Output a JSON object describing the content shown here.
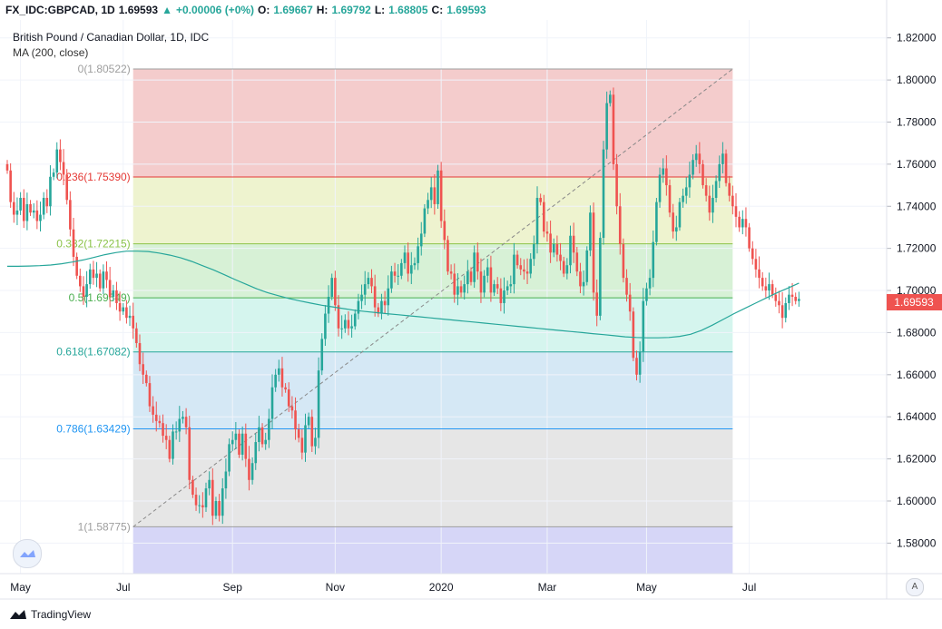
{
  "header": {
    "symbol": "FX_IDC:GBPCAD, 1D",
    "last": "1.69593",
    "change": "+0.00006 (+0%)",
    "o_label": "O:",
    "o": "1.69667",
    "h_label": "H:",
    "h": "1.69792",
    "l_label": "L:",
    "l": "1.68805",
    "c_label": "C:",
    "c": "1.69593"
  },
  "legend": {
    "title": "British Pound / Canadian Dollar, 1D, IDC",
    "study": "MA (200, close)"
  },
  "price_badge": "1.69593",
  "footer": {
    "brand": "TradingView"
  },
  "axis_button": "A",
  "colors": {
    "up": "#26a69a",
    "down": "#ef5350",
    "ma": "#26a69a",
    "badge": "#ef5350"
  },
  "chart_data": {
    "type": "candlestick",
    "ylim": [
      1.5655,
      1.8285
    ],
    "y_ticks": [
      "1.58000",
      "1.60000",
      "1.62000",
      "1.64000",
      "1.66000",
      "1.68000",
      "1.70000",
      "1.72000",
      "1.74000",
      "1.76000",
      "1.78000",
      "1.80000",
      "1.82000"
    ],
    "x_ticks": [
      {
        "label": "May",
        "idx": 4
      },
      {
        "label": "Jul",
        "idx": 35
      },
      {
        "label": "Sep",
        "idx": 68
      },
      {
        "label": "Nov",
        "idx": 99
      },
      {
        "label": "2020",
        "idx": 131
      },
      {
        "label": "Mar",
        "idx": 163
      },
      {
        "label": "May",
        "idx": 193
      },
      {
        "label": "Jul",
        "idx": 224
      }
    ],
    "fib": [
      {
        "label": "0(1.80522)",
        "value": 1.80522,
        "color": "#9e9e9e",
        "fill": "#f4cccc"
      },
      {
        "label": "0.236(1.75390)",
        "value": 1.7539,
        "color": "#e53935",
        "fill": "#eef3cf"
      },
      {
        "label": "0.382(1.72215)",
        "value": 1.72215,
        "color": "#8bc34a",
        "fill": "#d7f1d6"
      },
      {
        "label": "0.5(1.69649)",
        "value": 1.69649,
        "color": "#4caf50",
        "fill": "#d5f5ee"
      },
      {
        "label": "0.618(1.67082)",
        "value": 1.67082,
        "color": "#26a69a",
        "fill": "#d5e8f5"
      },
      {
        "label": "0.786(1.63429)",
        "value": 1.63429,
        "color": "#2196f3",
        "fill": "#e6e6e6"
      },
      {
        "label": "1(1.58775)",
        "value": 1.58775,
        "color": "#9e9e9e",
        "fill": "#d6d6f7"
      }
    ],
    "fib_idx_range": [
      38,
      219
    ],
    "trend": {
      "from": [
        38,
        1.58775
      ],
      "to": [
        219,
        1.80522
      ]
    },
    "closes": [
      1.757,
      1.742,
      1.736,
      1.738,
      1.744,
      1.733,
      1.741,
      1.737,
      1.738,
      1.733,
      1.736,
      1.744,
      1.74,
      1.754,
      1.756,
      1.767,
      1.761,
      1.755,
      1.743,
      1.729,
      1.716,
      1.707,
      1.702,
      1.697,
      1.703,
      1.71,
      1.706,
      1.708,
      1.701,
      1.709,
      1.705,
      1.697,
      1.7,
      1.694,
      1.69,
      1.692,
      1.687,
      1.688,
      1.682,
      1.675,
      1.665,
      1.66,
      1.656,
      1.645,
      1.641,
      1.638,
      1.637,
      1.631,
      1.629,
      1.62,
      1.633,
      1.633,
      1.639,
      1.64,
      1.635,
      1.61,
      1.603,
      1.598,
      1.598,
      1.597,
      1.606,
      1.61,
      1.593,
      1.6,
      1.593,
      1.606,
      1.614,
      1.627,
      1.629,
      1.632,
      1.622,
      1.632,
      1.62,
      1.61,
      1.618,
      1.628,
      1.635,
      1.627,
      1.629,
      1.639,
      1.654,
      1.66,
      1.663,
      1.654,
      1.653,
      1.645,
      1.643,
      1.634,
      1.63,
      1.623,
      1.636,
      1.64,
      1.626,
      1.63,
      1.662,
      1.677,
      1.689,
      1.697,
      1.706,
      1.693,
      1.682,
      1.682,
      1.686,
      1.682,
      1.683,
      1.689,
      1.695,
      1.698,
      1.703,
      1.706,
      1.702,
      1.692,
      1.689,
      1.695,
      1.693,
      1.701,
      1.709,
      1.707,
      1.707,
      1.713,
      1.718,
      1.708,
      1.712,
      1.713,
      1.721,
      1.727,
      1.739,
      1.743,
      1.749,
      1.741,
      1.757,
      1.733,
      1.724,
      1.709,
      1.708,
      1.698,
      1.702,
      1.699,
      1.703,
      1.709,
      1.704,
      1.718,
      1.709,
      1.699,
      1.707,
      1.711,
      1.699,
      1.703,
      1.701,
      1.694,
      1.7,
      1.702,
      1.703,
      1.717,
      1.712,
      1.71,
      1.709,
      1.708,
      1.715,
      1.722,
      1.744,
      1.742,
      1.728,
      1.727,
      1.718,
      1.722,
      1.717,
      1.714,
      1.708,
      1.712,
      1.726,
      1.718,
      1.709,
      1.702,
      1.704,
      1.719,
      1.737,
      1.699,
      1.688,
      1.725,
      1.767,
      1.789,
      1.793,
      1.76,
      1.74,
      1.722,
      1.706,
      1.698,
      1.69,
      1.668,
      1.66,
      1.671,
      1.695,
      1.701,
      1.706,
      1.723,
      1.742,
      1.755,
      1.758,
      1.75,
      1.737,
      1.728,
      1.73,
      1.742,
      1.745,
      1.749,
      1.755,
      1.762,
      1.765,
      1.76,
      1.75,
      1.745,
      1.737,
      1.744,
      1.752,
      1.76,
      1.765,
      1.751,
      1.745,
      1.74,
      1.735,
      1.73,
      1.734,
      1.73,
      1.72,
      1.715,
      1.71,
      1.706,
      1.702,
      1.7,
      1.703,
      1.698,
      1.695,
      1.693,
      1.687,
      1.694,
      1.698,
      1.697,
      1.695,
      1.696
    ],
    "ma200": [
      1.7115,
      1.7115,
      1.7116,
      1.7118,
      1.7121,
      1.7127,
      1.7135,
      1.7145,
      1.7157,
      1.717,
      1.718,
      1.7187,
      1.7187,
      1.7185,
      1.7178,
      1.7168,
      1.7155,
      1.7138,
      1.7118,
      1.7098,
      1.7075,
      1.7052,
      1.703,
      1.7008,
      1.699,
      1.6975,
      1.6962,
      1.695,
      1.694,
      1.693,
      1.6922,
      1.6914,
      1.6906,
      1.69,
      1.6895,
      1.689,
      1.6885,
      1.688,
      1.6875,
      1.687,
      1.6865,
      1.686,
      1.6855,
      1.685,
      1.6845,
      1.684,
      1.6835,
      1.683,
      1.6825,
      1.682,
      1.6815,
      1.681,
      1.6805,
      1.68,
      1.6795,
      1.679,
      1.6785,
      1.678,
      1.6777,
      1.6775,
      1.6775,
      1.6777,
      1.6782,
      1.6792,
      1.681,
      1.6835,
      1.6862,
      1.689,
      1.6915,
      1.694,
      1.6965,
      1.699,
      1.7012,
      1.7035
    ],
    "ma_start_idx": 0
  }
}
